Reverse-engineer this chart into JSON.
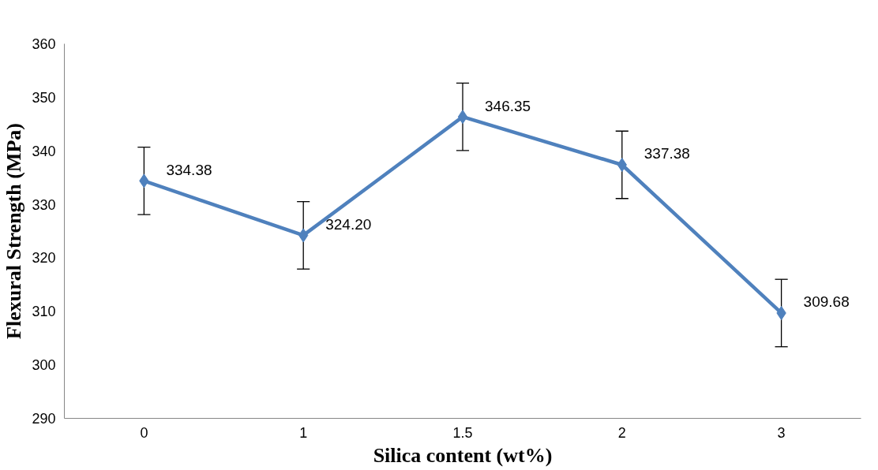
{
  "chart_data": {
    "type": "line",
    "xlabel": "Silica content (wt%)",
    "ylabel": "Flexural Strength (MPa)",
    "categories": [
      "0",
      "1",
      "1.5",
      "2",
      "3"
    ],
    "series": [
      {
        "color": "#4f81bd",
        "values": [
          334.38,
          324.2,
          346.35,
          337.38,
          309.68
        ],
        "errors": [
          6.3,
          6.3,
          6.3,
          6.3,
          6.3
        ],
        "value_labels": [
          "334.38",
          "324.20",
          "346.35",
          "337.38",
          "309.68"
        ]
      }
    ],
    "ylim": [
      290,
      360
    ],
    "yticks": [
      290,
      300,
      310,
      320,
      330,
      340,
      350,
      360
    ],
    "grid": false,
    "marker": "diamond",
    "line_style": "solid"
  }
}
